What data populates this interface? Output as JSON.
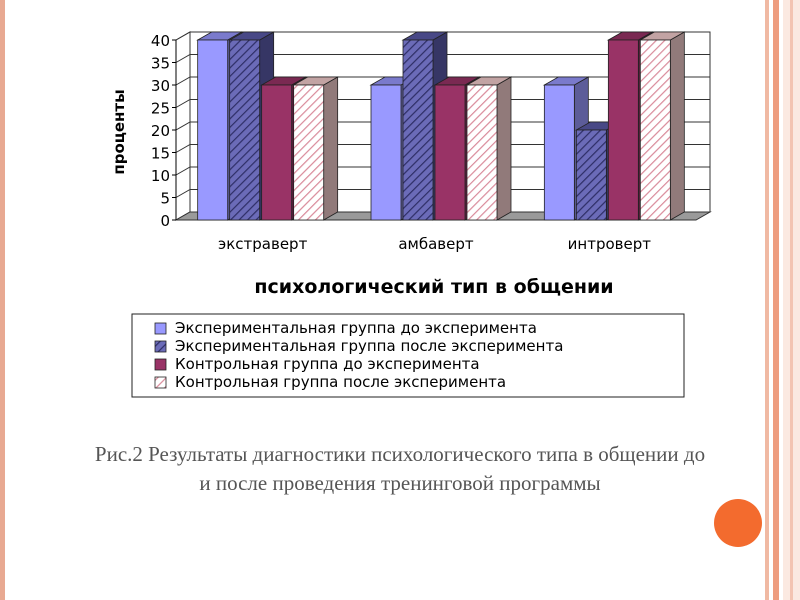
{
  "caption": {
    "line1": "Рис.2 Результаты диагностики психологического типа в общении до",
    "line2": "и после проведения тренинговой программы"
  },
  "chart_data": {
    "type": "bar",
    "categories": [
      "экстраверт",
      "амбаверт",
      "интроверт"
    ],
    "series": [
      {
        "name": "Экспериментальная группа до эксперимента",
        "values": [
          40,
          30,
          30
        ],
        "color": "#9999ff",
        "pattern": "solid"
      },
      {
        "name": "Экспериментальная группа после эксперимента",
        "values": [
          40,
          40,
          20
        ],
        "color": "#5a5aa8",
        "pattern": "dark-hatch"
      },
      {
        "name": "Контрольная группа до эксперимента",
        "values": [
          30,
          30,
          40
        ],
        "color": "#993366",
        "pattern": "solid"
      },
      {
        "name": "Контрольная группа после эксперимента",
        "values": [
          30,
          30,
          40
        ],
        "color": "#f2cccc",
        "pattern": "light-hatch"
      }
    ],
    "xlabel": "психологический тип в общении",
    "ylabel": "проценты",
    "ylim": [
      0,
      40
    ],
    "yticks": [
      "0",
      "5",
      "10",
      "15",
      "20",
      "25",
      "30",
      "35",
      "40"
    ],
    "grid": true,
    "legend_position": "bottom",
    "style": "3d-clustered-column"
  }
}
